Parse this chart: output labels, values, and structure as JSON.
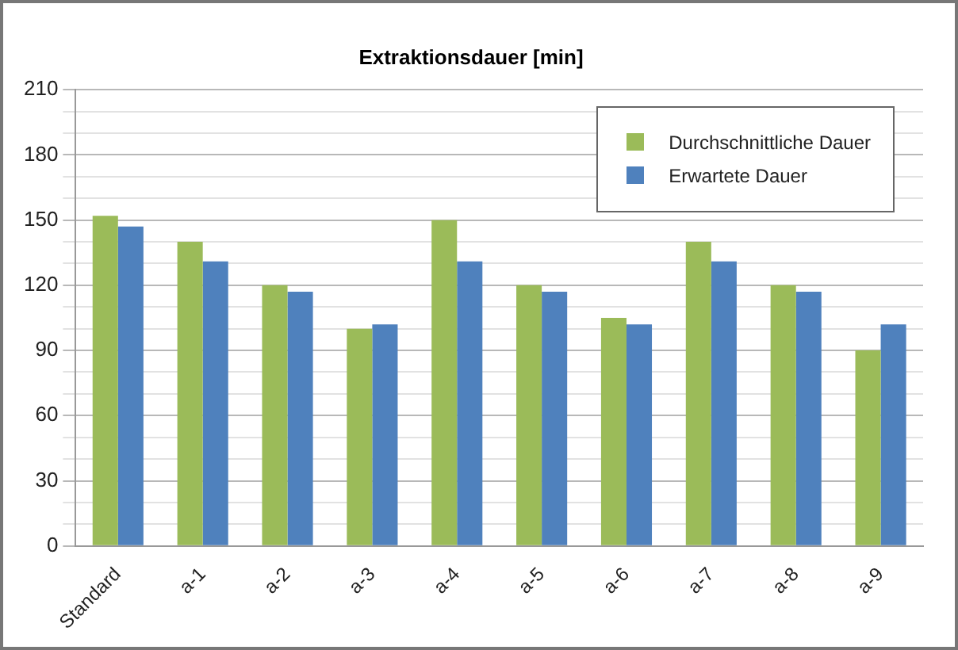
{
  "chart_data": {
    "type": "bar",
    "title": "Extraktionsdauer [min]",
    "categories": [
      "Standard",
      "a-1",
      "a-2",
      "a-3",
      "a-4",
      "a-5",
      "a-6",
      "a-7",
      "a-8",
      "a-9"
    ],
    "series": [
      {
        "name": "Durchschnittliche Dauer",
        "color": "#9bbb59",
        "values": [
          152,
          140,
          120,
          100,
          150,
          120,
          105,
          140,
          120,
          90
        ]
      },
      {
        "name": "Erwartete Dauer",
        "color": "#4f81bd",
        "values": [
          147,
          131,
          117,
          102,
          131,
          117,
          102,
          131,
          117,
          102
        ]
      }
    ],
    "ylim": [
      0,
      210
    ],
    "yticks": [
      0,
      {
        "value": 10,
        "label": null
      },
      {
        "value": 20,
        "label": null
      },
      30,
      {
        "value": 40,
        "label": null
      },
      {
        "value": 50,
        "label": null
      },
      60,
      {
        "value": 70,
        "label": null
      },
      {
        "value": 80,
        "label": null
      },
      90,
      {
        "value": 100,
        "label": null
      },
      {
        "value": 110,
        "label": null
      },
      120,
      {
        "value": 130,
        "label": null
      },
      {
        "value": 140,
        "label": null
      },
      150,
      {
        "value": 160,
        "label": null
      },
      {
        "value": 170,
        "label": null
      },
      180,
      {
        "value": 190,
        "label": null
      },
      {
        "value": 200,
        "label": null
      },
      210
    ],
    "grid": "y",
    "legend": "top right"
  }
}
